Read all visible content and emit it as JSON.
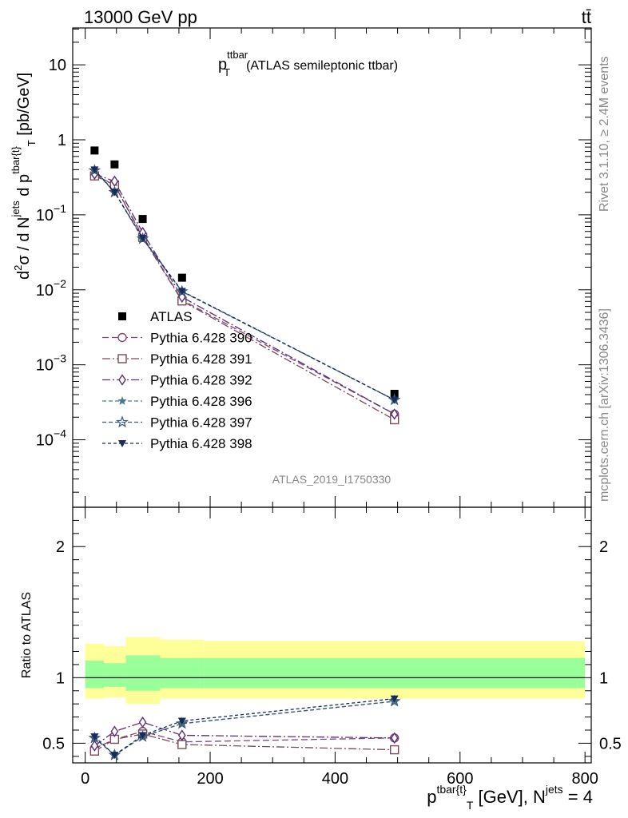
{
  "header": {
    "left_label": "13000 GeV pp",
    "right_label": "tt̄"
  },
  "side_labels": {
    "rivet": "Rivet 3.1.10, ≥ 2.4M events",
    "mcplots": "mcplots.cern.ch [arXiv:1306.3436]"
  },
  "chart_data": [
    {
      "type": "scatter",
      "panel": "main",
      "title": "p_T^ttbar (ATLAS semileptonic ttbar)",
      "title_parts": {
        "p": "p",
        "sup": "ttbar",
        "sub": "T",
        "rest": "(ATLAS semileptonic ttbar)"
      },
      "ylabel_parts": {
        "d2": "d",
        "s2": "2",
        "sigma": "σ  /  d N",
        "jets": "jets",
        "dp": " d p",
        "tbart": "tbar{t}",
        "T": "T",
        "unit": " [pb/GeV]"
      },
      "analysis_label": "ATLAS_2019_I1750330",
      "y_scale": "log",
      "xlim": [
        -20,
        810
      ],
      "ylim": [
        1.26e-05,
        31
      ],
      "y_tick_labels": [
        {
          "value": 10,
          "base": "10",
          "exp": ""
        },
        {
          "value": 1,
          "base": "1",
          "exp": ""
        },
        {
          "value": 0.1,
          "base": "10",
          "exp": "−1"
        },
        {
          "value": 0.01,
          "base": "10",
          "exp": "−2"
        },
        {
          "value": 0.001,
          "base": "10",
          "exp": "−3"
        },
        {
          "value": 0.0001,
          "base": "10",
          "exp": "−4"
        }
      ],
      "legend_position": "lower-left",
      "x": [
        15,
        47,
        92,
        155,
        495
      ],
      "series": [
        {
          "name": "ATLAS",
          "marker": "square-filled",
          "color": "#000000",
          "values": [
            0.72,
            0.47,
            0.088,
            0.0145,
            0.00041
          ]
        },
        {
          "name": "Pythia 6.428 390",
          "marker": "circle-open",
          "color": "#7b4a78",
          "dash": "8,4",
          "values": [
            0.34,
            0.25,
            0.052,
            0.0073,
            0.00022
          ]
        },
        {
          "name": "Pythia 6.428 391",
          "marker": "square-open",
          "color": "#7b4a55",
          "dash": "10,3,2,3",
          "values": [
            0.33,
            0.25,
            0.05,
            0.0071,
            0.000185
          ]
        },
        {
          "name": "Pythia 6.428 392",
          "marker": "diamond-open",
          "color": "#5a2e7a",
          "dash": "10,3,2,3",
          "values": [
            0.35,
            0.28,
            0.058,
            0.008,
            0.00022
          ]
        },
        {
          "name": "Pythia 6.428 396",
          "marker": "star-filled",
          "color": "#4a7a8a",
          "dash": "5,3",
          "values": [
            0.39,
            0.2,
            0.048,
            0.0095,
            0.00034
          ]
        },
        {
          "name": "Pythia 6.428 397",
          "marker": "star-open",
          "color": "#3a5a7a",
          "dash": "5,3",
          "values": [
            0.39,
            0.2,
            0.048,
            0.0095,
            0.00034
          ]
        },
        {
          "name": "Pythia 6.428 398",
          "marker": "triangle-down-filled",
          "color": "#1a2a5a",
          "dash": "4,3",
          "values": [
            0.4,
            0.2,
            0.049,
            0.0096,
            0.00034
          ]
        }
      ]
    },
    {
      "type": "line",
      "panel": "ratio",
      "ylabel": "Ratio to ATLAS",
      "xlabel_parts": {
        "p": "p",
        "sup": "tbar{t}",
        "sub": "T",
        "rest": " [GeV], N",
        "jets": "jets",
        "eq": " = 4"
      },
      "xlim": [
        -20,
        810
      ],
      "ylim": [
        0.35,
        2.3
      ],
      "x_ticks": [
        0,
        200,
        400,
        600,
        800
      ],
      "x_tick_labels": [
        "0",
        "200",
        "400",
        "600",
        "800"
      ],
      "y_ticks": [
        0.5,
        1,
        2
      ],
      "y_tick_labels": [
        "0.5",
        "1",
        "2"
      ],
      "band_bins": [
        {
          "x0": 0,
          "x1": 30,
          "inner": [
            0.92,
            1.13
          ],
          "outer": [
            0.84,
            1.26
          ]
        },
        {
          "x0": 30,
          "x1": 65,
          "inner": [
            0.93,
            1.11
          ],
          "outer": [
            0.85,
            1.24
          ]
        },
        {
          "x0": 65,
          "x1": 120,
          "inner": [
            0.9,
            1.17
          ],
          "outer": [
            0.8,
            1.31
          ]
        },
        {
          "x0": 120,
          "x1": 190,
          "inner": [
            0.92,
            1.15
          ],
          "outer": [
            0.84,
            1.29
          ]
        },
        {
          "x0": 190,
          "x1": 800,
          "inner": [
            0.92,
            1.15
          ],
          "outer": [
            0.84,
            1.28
          ]
        }
      ],
      "x": [
        15,
        47,
        92,
        155,
        495
      ],
      "series": [
        {
          "name": "Pythia 6.428 390",
          "marker": "circle-open",
          "color": "#7b4a78",
          "dash": "8,4",
          "values": [
            0.46,
            0.53,
            0.59,
            0.51,
            0.54
          ]
        },
        {
          "name": "Pythia 6.428 391",
          "marker": "square-open",
          "color": "#7b4a55",
          "dash": "10,3,2,3",
          "values": [
            0.44,
            0.53,
            0.57,
            0.49,
            0.45
          ]
        },
        {
          "name": "Pythia 6.428 392",
          "marker": "diamond-open",
          "color": "#5a2e7a",
          "dash": "10,3,2,3",
          "values": [
            0.48,
            0.59,
            0.66,
            0.56,
            0.54
          ]
        },
        {
          "name": "Pythia 6.428 396",
          "marker": "star-filled",
          "color": "#4a7a8a",
          "dash": "5,3",
          "values": [
            0.54,
            0.41,
            0.55,
            0.65,
            0.82
          ]
        },
        {
          "name": "Pythia 6.428 397",
          "marker": "star-open",
          "color": "#3a5a7a",
          "dash": "5,3",
          "values": [
            0.54,
            0.41,
            0.55,
            0.65,
            0.82
          ]
        },
        {
          "name": "Pythia 6.428 398",
          "marker": "triangle-down-filled",
          "color": "#1a2a5a",
          "dash": "4,3",
          "values": [
            0.55,
            0.41,
            0.56,
            0.67,
            0.84
          ]
        }
      ]
    }
  ]
}
